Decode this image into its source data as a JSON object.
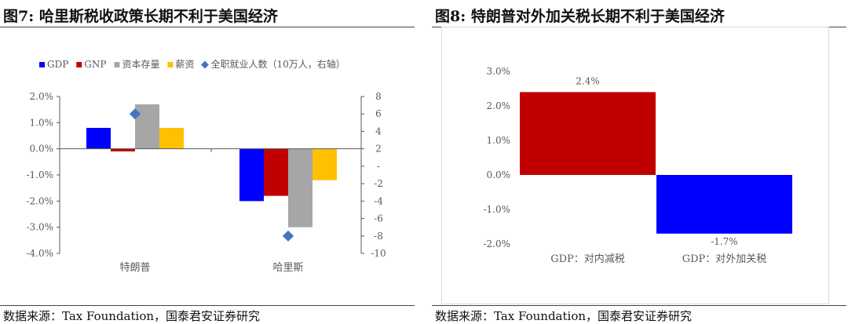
{
  "left": {
    "title": "图7:  哈里斯税收政策长期不利于美国经济",
    "source": "数据来源：Tax Foundation，国泰君安证券研究",
    "chart_data": {
      "type": "bar",
      "categories": [
        "特朗普",
        "哈里斯"
      ],
      "series": [
        {
          "name": "GDP",
          "values": [
            0.8,
            -2.0
          ],
          "color": "#0000ff"
        },
        {
          "name": "GNP",
          "values": [
            -0.1,
            -1.8
          ],
          "color": "#c00000"
        },
        {
          "name": "资本存量",
          "values": [
            1.7,
            -3.0
          ],
          "color": "#a6a6a6"
        },
        {
          "name": "薪资",
          "values": [
            0.8,
            -1.2
          ],
          "color": "#ffc000"
        }
      ],
      "secondary_series": {
        "name": "全职就业人数（10万人，右轴）",
        "type": "scatter",
        "marker": "diamond",
        "values": [
          6,
          -8
        ],
        "color": "#4472c4"
      },
      "ylim": [
        -4,
        2
      ],
      "yticks": [
        "2.0%",
        "1.0%",
        "0.0%",
        "-1.0%",
        "-2.0%",
        "-3.0%",
        "-4.0%"
      ],
      "y2lim": [
        -10,
        8
      ],
      "y2ticks": [
        "8",
        "6",
        "4",
        "2",
        "-",
        "-2",
        "-4",
        "-6",
        "-8",
        "-10"
      ],
      "legend_position": "top"
    }
  },
  "right": {
    "title": "图8:  特朗普对外加关税长期不利于美国经济",
    "source": "数据来源：Tax Foundation，国泰君安证券研究",
    "chart_data": {
      "type": "bar",
      "categories": [
        "GDP：对内减税",
        "GDP：对外加关税"
      ],
      "values": [
        2.4,
        -1.7
      ],
      "data_labels": [
        "2.4%",
        "-1.7%"
      ],
      "colors": [
        "#c00000",
        "#0000ff"
      ],
      "ylim": [
        -2,
        3
      ],
      "yticks": [
        "3.0%",
        "2.0%",
        "1.0%",
        "0.0%",
        "-1.0%",
        "-2.0%"
      ]
    }
  }
}
